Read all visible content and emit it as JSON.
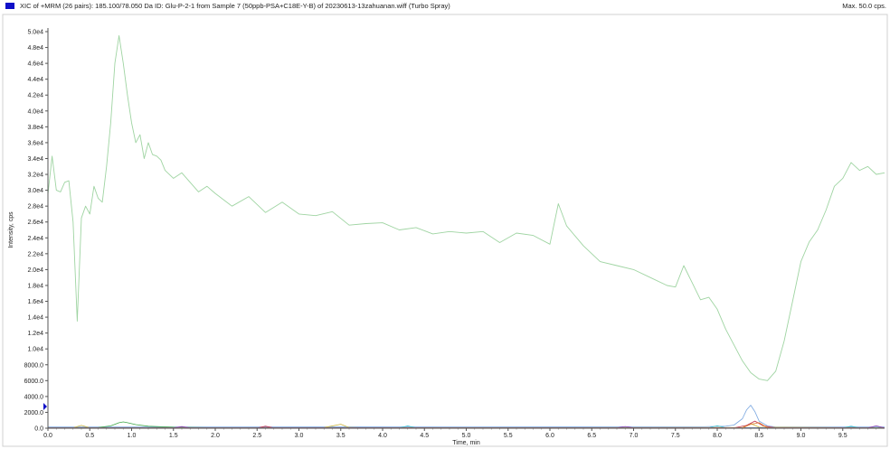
{
  "header": {
    "title": "XIC of +MRM (26 pairs): 185.100/78.050 Da ID: Glu-P-2-1 from Sample 7 (50ppb-PSA+C18E-Y-B) of 20230613-13zahuanan.wiff (Turbo Spray)",
    "max_label": "Max. 50.0 cps.",
    "swatch_color": "#1010c8"
  },
  "chart_data": {
    "type": "line",
    "xlabel": "Time, min",
    "ylabel": "Intensity, cps",
    "xlim": [
      0.0,
      10.0
    ],
    "ylim": [
      0,
      50000
    ],
    "x_ticks": [
      0.0,
      0.5,
      1.0,
      1.5,
      2.0,
      2.5,
      3.0,
      3.5,
      4.0,
      4.5,
      5.0,
      5.5,
      6.0,
      6.5,
      7.0,
      7.5,
      8.0,
      8.5,
      9.0,
      9.5
    ],
    "x_tick_labels": [
      "0.0",
      "0.5",
      "1.0",
      "1.5",
      "2.0",
      "2.5",
      "3.0",
      "3.5",
      "4.0",
      "4.5",
      "5.0",
      "5.5",
      "6.0",
      "6.5",
      "7.0",
      "7.5",
      "8.0",
      "8.5",
      "9.0",
      "9.5"
    ],
    "y_ticks": [
      0,
      2000,
      4000,
      6000,
      8000,
      10000,
      12000,
      14000,
      16000,
      18000,
      20000,
      22000,
      24000,
      26000,
      28000,
      30000,
      32000,
      34000,
      36000,
      38000,
      40000,
      42000,
      44000,
      46000,
      48000,
      50000
    ],
    "y_tick_labels": [
      "0.0",
      "2000.0",
      "4000.0",
      "6000.0",
      "8000.0",
      "1.0e4",
      "1.2e4",
      "1.4e4",
      "1.6e4",
      "1.8e4",
      "2.0e4",
      "2.2e4",
      "2.4e4",
      "2.6e4",
      "2.8e4",
      "3.0e4",
      "3.2e4",
      "3.4e4",
      "3.6e4",
      "3.8e4",
      "4.0e4",
      "4.2e4",
      "4.4e4",
      "4.6e4",
      "4.8e4",
      "5.0e4"
    ],
    "series": [
      {
        "color": "#9fd4a2",
        "x": [
          0.0,
          0.05,
          0.1,
          0.15,
          0.2,
          0.25,
          0.3,
          0.35,
          0.4,
          0.45,
          0.5,
          0.55,
          0.6,
          0.65,
          0.7,
          0.75,
          0.8,
          0.85,
          0.9,
          0.95,
          1.0,
          1.05,
          1.1,
          1.15,
          1.2,
          1.25,
          1.3,
          1.35,
          1.4,
          1.5,
          1.6,
          1.7,
          1.8,
          1.9,
          2.0,
          2.2,
          2.4,
          2.6,
          2.8,
          3.0,
          3.2,
          3.4,
          3.6,
          3.8,
          4.0,
          4.2,
          4.4,
          4.6,
          4.8,
          5.0,
          5.2,
          5.4,
          5.6,
          5.8,
          6.0,
          6.1,
          6.2,
          6.4,
          6.6,
          6.8,
          7.0,
          7.2,
          7.4,
          7.5,
          7.6,
          7.8,
          7.9,
          8.0,
          8.1,
          8.2,
          8.3,
          8.4,
          8.5,
          8.6,
          8.7,
          8.8,
          8.9,
          9.0,
          9.1,
          9.2,
          9.3,
          9.4,
          9.5,
          9.6,
          9.7,
          9.8,
          9.9,
          10.0
        ],
        "y": [
          29500,
          34300,
          30000,
          29800,
          31000,
          31200,
          26000,
          13500,
          26500,
          28000,
          27000,
          30500,
          29000,
          28500,
          33000,
          38500,
          46000,
          49500,
          46000,
          42000,
          38500,
          36000,
          37000,
          34000,
          36000,
          34500,
          34300,
          33800,
          32500,
          31500,
          32200,
          31000,
          29800,
          30500,
          29600,
          28000,
          29200,
          27200,
          28500,
          27000,
          26800,
          27300,
          25600,
          25800,
          25900,
          25000,
          25300,
          24500,
          24800,
          24600,
          24800,
          23400,
          24600,
          24300,
          23200,
          28300,
          25500,
          23000,
          21000,
          20500,
          20000,
          19000,
          18000,
          17800,
          20500,
          16200,
          16500,
          15000,
          12500,
          10500,
          8500,
          7000,
          6200,
          6000,
          7200,
          11000,
          16000,
          21000,
          23500,
          25000,
          27500,
          30500,
          31500,
          33500,
          32500,
          33000,
          32000,
          32200
        ]
      },
      {
        "color": "#7aa7e0",
        "x": [
          0.0,
          7.8,
          8.1,
          8.2,
          8.3,
          8.35,
          8.4,
          8.45,
          8.5,
          8.6,
          8.7,
          10.0
        ],
        "y": [
          150,
          180,
          250,
          400,
          1200,
          2300,
          2900,
          2100,
          900,
          300,
          150,
          150
        ]
      },
      {
        "color": "#3fa84a",
        "x": [
          0.0,
          0.6,
          0.75,
          0.85,
          0.9,
          0.95,
          1.05,
          1.2,
          1.5,
          2.0,
          10.0
        ],
        "y": [
          50,
          80,
          300,
          700,
          800,
          700,
          450,
          250,
          120,
          60,
          50
        ]
      },
      {
        "color": "#c9b23a",
        "x": [
          0.0,
          0.3,
          0.4,
          0.5,
          3.3,
          3.5,
          3.6,
          3.8,
          8.3,
          8.4,
          8.5,
          10.0
        ],
        "y": [
          40,
          60,
          350,
          60,
          80,
          500,
          90,
          60,
          80,
          600,
          120,
          40
        ]
      },
      {
        "color": "#c0304a",
        "x": [
          0.0,
          2.5,
          2.6,
          2.7,
          8.2,
          8.35,
          8.45,
          8.55,
          8.7,
          10.0
        ],
        "y": [
          20,
          20,
          250,
          30,
          40,
          350,
          900,
          300,
          40,
          20
        ]
      },
      {
        "color": "#33b8c8",
        "x": [
          0.0,
          4.2,
          4.3,
          4.4,
          7.9,
          8.0,
          8.1,
          9.5,
          9.6,
          9.7,
          10.0
        ],
        "y": [
          30,
          40,
          280,
          40,
          60,
          300,
          60,
          40,
          250,
          40,
          30
        ]
      },
      {
        "color": "#8a3fb0",
        "x": [
          0.0,
          1.5,
          1.6,
          1.7,
          6.8,
          6.9,
          7.0,
          9.8,
          9.9,
          10.0
        ],
        "y": [
          30,
          30,
          200,
          30,
          30,
          220,
          30,
          30,
          300,
          30
        ]
      },
      {
        "color": "#e0782a",
        "x": [
          0.0,
          8.3,
          8.4,
          8.5,
          8.6,
          10.0
        ],
        "y": [
          25,
          40,
          500,
          700,
          60,
          25
        ]
      }
    ]
  }
}
